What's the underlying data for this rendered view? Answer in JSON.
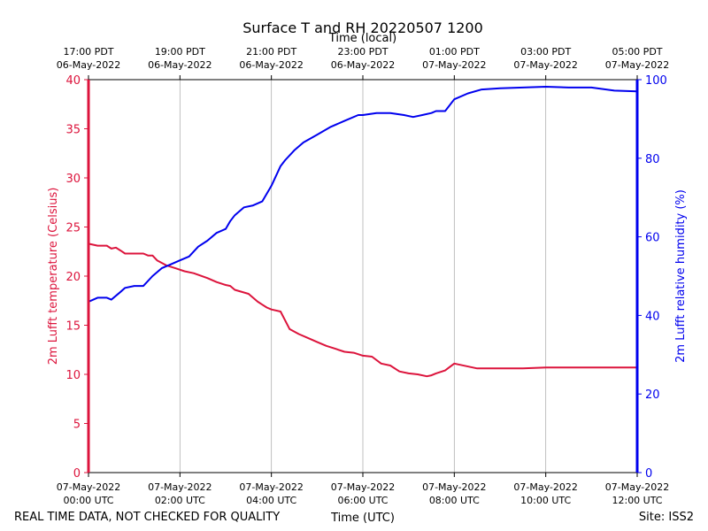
{
  "chart_data": {
    "type": "line",
    "title": "Surface T and RH 20220507 1200",
    "top_axis_label": "Time (local)",
    "xlabel": "Time (UTC)",
    "ylabel_left": "2m Lufft temperature (Celsius)",
    "ylabel_right": "2m Lufft relative humidity (%)",
    "footer_left": "REAL TIME DATA, NOT CHECKED FOR QUALITY",
    "footer_right": "Site: ISS2",
    "x_range_hours": [
      0,
      12
    ],
    "ylim_left": [
      0,
      40
    ],
    "ylim_right": [
      0,
      100
    ],
    "grid": "vertical",
    "left_ticks": [
      "0",
      "5",
      "10",
      "15",
      "20",
      "25",
      "30",
      "35",
      "40"
    ],
    "right_ticks": [
      "0",
      "20",
      "40",
      "60",
      "80",
      "100"
    ],
    "bottom_ticks": [
      {
        "line1": "07-May-2022",
        "line2": "00:00 UTC"
      },
      {
        "line1": "07-May-2022",
        "line2": "02:00 UTC"
      },
      {
        "line1": "07-May-2022",
        "line2": "04:00 UTC"
      },
      {
        "line1": "07-May-2022",
        "line2": "06:00 UTC"
      },
      {
        "line1": "07-May-2022",
        "line2": "08:00 UTC"
      },
      {
        "line1": "07-May-2022",
        "line2": "10:00 UTC"
      },
      {
        "line1": "07-May-2022",
        "line2": "12:00 UTC"
      }
    ],
    "top_ticks": [
      {
        "line1": "17:00 PDT",
        "line2": "06-May-2022"
      },
      {
        "line1": "19:00 PDT",
        "line2": "06-May-2022"
      },
      {
        "line1": "21:00 PDT",
        "line2": "06-May-2022"
      },
      {
        "line1": "23:00 PDT",
        "line2": "06-May-2022"
      },
      {
        "line1": "01:00 PDT",
        "line2": "07-May-2022"
      },
      {
        "line1": "03:00 PDT",
        "line2": "07-May-2022"
      },
      {
        "line1": "05:00 PDT",
        "line2": "07-May-2022"
      }
    ],
    "colors": {
      "temperature": "#dc143c",
      "humidity": "#0000ee",
      "grid": "#b0b0b0"
    },
    "series": [
      {
        "name": "Temperature (Celsius)",
        "axis": "left",
        "x": [
          0,
          0.2,
          0.4,
          0.5,
          0.6,
          0.7,
          0.8,
          1.0,
          1.2,
          1.3,
          1.4,
          1.5,
          1.7,
          1.9,
          2.1,
          2.3,
          2.6,
          2.8,
          3.0,
          3.1,
          3.2,
          3.5,
          3.7,
          3.8,
          3.9,
          4.0,
          4.2,
          4.4,
          4.6,
          4.8,
          5.0,
          5.2,
          5.4,
          5.6,
          5.8,
          6.0,
          6.2,
          6.4,
          6.6,
          6.8,
          7.0,
          7.2,
          7.4,
          7.5,
          7.6,
          7.8,
          8.0,
          8.5,
          9.0,
          9.5,
          10.0,
          10.5,
          11.0,
          11.5,
          12.0
        ],
        "values": [
          23.3,
          23.1,
          23.1,
          22.8,
          22.9,
          22.6,
          22.3,
          22.3,
          22.3,
          22.1,
          22.1,
          21.6,
          21.1,
          20.8,
          20.5,
          20.3,
          19.8,
          19.4,
          19.1,
          19.0,
          18.6,
          18.2,
          17.4,
          17.1,
          16.8,
          16.6,
          16.4,
          14.6,
          14.1,
          13.7,
          13.3,
          12.9,
          12.6,
          12.3,
          12.2,
          11.9,
          11.8,
          11.1,
          10.9,
          10.3,
          10.1,
          10.0,
          9.8,
          9.9,
          10.1,
          10.4,
          11.1,
          10.6,
          10.6,
          10.6,
          10.7,
          10.7,
          10.7,
          10.7,
          10.7
        ]
      },
      {
        "name": "Relative humidity (%)",
        "axis": "right",
        "x": [
          0,
          0.2,
          0.4,
          0.5,
          0.7,
          0.8,
          1.0,
          1.2,
          1.4,
          1.6,
          1.8,
          2.0,
          2.2,
          2.4,
          2.6,
          2.8,
          3.0,
          3.1,
          3.2,
          3.4,
          3.6,
          3.8,
          4.0,
          4.2,
          4.3,
          4.5,
          4.7,
          5.0,
          5.3,
          5.6,
          5.9,
          6.0,
          6.3,
          6.6,
          6.9,
          7.1,
          7.3,
          7.5,
          7.6,
          7.8,
          8.0,
          8.3,
          8.6,
          9.0,
          9.5,
          10.0,
          10.5,
          11.0,
          11.5,
          12.0
        ],
        "values": [
          43.5,
          44.5,
          44.5,
          44.0,
          46.0,
          47.0,
          47.5,
          47.5,
          50.0,
          52.0,
          53.0,
          54.0,
          55.0,
          57.5,
          59.0,
          61.0,
          62.0,
          64.0,
          65.5,
          67.5,
          68.0,
          69.0,
          73.0,
          78.0,
          79.5,
          82.0,
          84.0,
          86.0,
          88.0,
          89.5,
          91.0,
          91.0,
          91.5,
          91.5,
          91.0,
          90.5,
          91.0,
          91.5,
          92.0,
          92.0,
          95.0,
          96.5,
          97.5,
          97.8,
          98.0,
          98.2,
          98.0,
          98.0,
          97.2,
          97.0
        ]
      }
    ]
  }
}
